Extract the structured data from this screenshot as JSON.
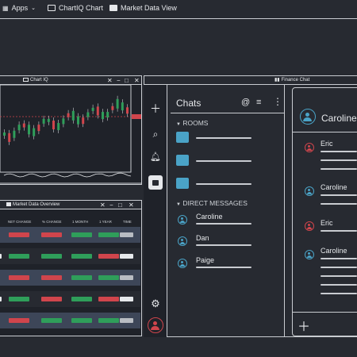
{
  "topbar": {
    "apps_label": "Apps",
    "chartiq_label": "ChartIQ Chart",
    "market_view_label": "Market Data View"
  },
  "chart_window": {
    "title": "Chart IQ"
  },
  "market_window": {
    "title": "Market Data Overview",
    "columns": [
      "NET CHANGE",
      "% CHANGE",
      "1 MONTH",
      "1 YEAR",
      "TIME"
    ],
    "row_colors": [
      [
        "#d0454c",
        "#d0454c",
        "#2f9e5a",
        "#2f9e5a",
        "#b8bcc2"
      ],
      [
        "#2f9e5a",
        "#2f9e5a",
        "#2f9e5a",
        "#d0454c",
        "#e6e8eb"
      ],
      [
        "#d0454c",
        "#d0454c",
        "#2f9e5a",
        "#2f9e5a",
        "#b8bcc2"
      ],
      [
        "#2f9e5a",
        "#d0454c",
        "#2f9e5a",
        "#d0454c",
        "#e6e8eb"
      ],
      [
        "#d0454c",
        "#2f9e5a",
        "#2f9e5a",
        "#2f9e5a",
        "#b8bcc2"
      ]
    ]
  },
  "finance_chat": {
    "title": "Finance Chat",
    "chats_label": "Chats",
    "rooms_label": "ROOMS",
    "direct_label": "DIRECT MESSAGES",
    "dms": [
      "Caroline",
      "Dan",
      "Paige"
    ],
    "active_user": "Caroline",
    "messages": [
      "Eric",
      "Caroline",
      "Eric",
      "Caroline"
    ]
  },
  "colors": {
    "bg": "#272a31",
    "accent": "#4aa3c7",
    "red": "#d0454c",
    "green": "#2f9e5a"
  }
}
